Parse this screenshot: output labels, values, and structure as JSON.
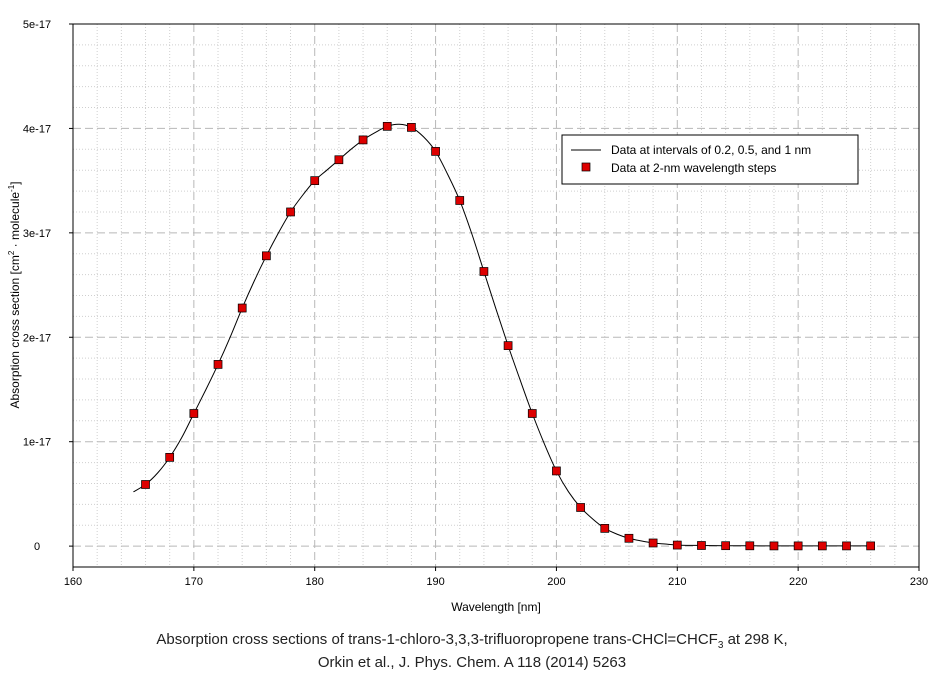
{
  "chart_data": {
    "type": "line",
    "xlabel": "Wavelength [nm]",
    "ylabel": "Absorption cross section [cm",
    "ylabel_sup1": "2",
    "ylabel_mid": " · molecule",
    "ylabel_sup2": "-1",
    "ylabel_end": "]",
    "xlim": [
      160,
      230
    ],
    "ylim": [
      -2e-18,
      5e-17
    ],
    "x_ticks": [
      160,
      170,
      180,
      190,
      200,
      210,
      220,
      230
    ],
    "x_tick_labels": [
      "160",
      "170",
      "180",
      "190",
      "200",
      "210",
      "220",
      "230"
    ],
    "y_ticks": [
      0,
      1e-17,
      2e-17,
      3e-17,
      4e-17,
      5e-17
    ],
    "y_tick_labels": [
      "0",
      "1e-17",
      "2e-17",
      "3e-17",
      "4e-17",
      "5e-17"
    ],
    "grid": true,
    "legend_position": "top-right",
    "series": [
      {
        "name": "Data at intervals of 0.2, 0.5, and 1 nm",
        "style": "line",
        "color": "#000000",
        "x": [
          165,
          166,
          167,
          168,
          169,
          170,
          171,
          172,
          173,
          174,
          175,
          176,
          177,
          178,
          179,
          180,
          181,
          182,
          183,
          184,
          185,
          186,
          187,
          188,
          189,
          190,
          191,
          192,
          193,
          194,
          195,
          196,
          197,
          198,
          199,
          200,
          201,
          202,
          203,
          204,
          205,
          206,
          207,
          208,
          209,
          210,
          212,
          214,
          216,
          218,
          220,
          222,
          224,
          226
        ],
        "y": [
          5.2e-18,
          5.9e-18,
          7e-18,
          8.5e-18,
          1.04e-17,
          1.27e-17,
          1.5e-17,
          1.74e-17,
          2e-17,
          2.28e-17,
          2.54e-17,
          2.78e-17,
          3e-17,
          3.2e-17,
          3.36e-17,
          3.5e-17,
          3.6e-17,
          3.7e-17,
          3.8e-17,
          3.89e-17,
          3.96e-17,
          4.02e-17,
          4.04e-17,
          4.01e-17,
          3.92e-17,
          3.78e-17,
          3.56e-17,
          3.31e-17,
          2.99e-17,
          2.63e-17,
          2.27e-17,
          1.92e-17,
          1.59e-17,
          1.27e-17,
          9.8e-18,
          7.2e-18,
          5.2e-18,
          3.7e-18,
          2.6e-18,
          1.7e-18,
          1.15e-18,
          7.5e-19,
          5e-19,
          3e-19,
          2e-19,
          1e-19,
          6e-20,
          4e-20,
          3e-20,
          2e-20,
          2e-20,
          2e-20,
          2e-20,
          2e-20
        ]
      },
      {
        "name": "Data at 2-nm wavelength steps",
        "style": "marker",
        "color": "#dd0000",
        "x": [
          166,
          168,
          170,
          172,
          174,
          176,
          178,
          180,
          182,
          184,
          186,
          188,
          190,
          192,
          194,
          196,
          198,
          200,
          202,
          204,
          206,
          208,
          210,
          212,
          214,
          216,
          218,
          220,
          222,
          224,
          226
        ],
        "y": [
          5.9e-18,
          8.5e-18,
          1.27e-17,
          1.74e-17,
          2.28e-17,
          2.78e-17,
          3.2e-17,
          3.5e-17,
          3.7e-17,
          3.89e-17,
          4.02e-17,
          4.01e-17,
          3.78e-17,
          3.31e-17,
          2.63e-17,
          1.92e-17,
          1.27e-17,
          7.2e-18,
          3.7e-18,
          1.7e-18,
          7.5e-19,
          3e-19,
          1e-19,
          6e-20,
          4e-20,
          3e-20,
          2e-20,
          2e-20,
          2e-20,
          2e-20,
          2e-20
        ]
      }
    ]
  },
  "caption": {
    "line1_start": "Absorption cross sections of trans-1-chloro-3,3,3-trifluoropropene trans-CHCl=CHCF",
    "line1_sub": "3",
    "line1_end": " at 298 K,",
    "line2": "Orkin et al., J. Phys. Chem. A 118 (2014) 5263"
  }
}
